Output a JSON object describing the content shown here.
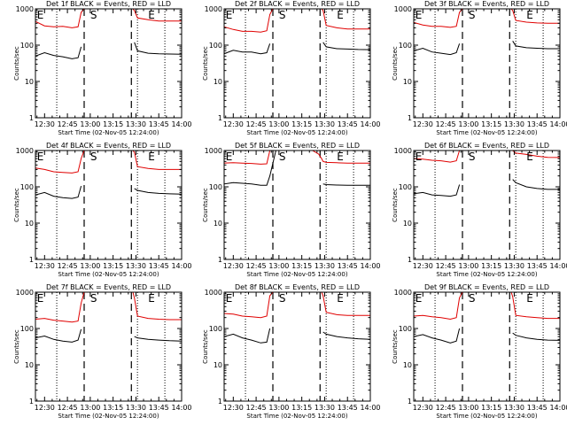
{
  "figure": {
    "panel_titles": [
      "Det 1f BLACK = Events, RED = LLD",
      "Det 2f BLACK = Events, RED = LLD",
      "Det 3f BLACK = Events, RED = LLD",
      "Det 4f BLACK = Events, RED = LLD",
      "Det 5f BLACK = Events, RED = LLD",
      "Det 6f BLACK = Events, RED = LLD",
      "Det 7f BLACK = Events, RED = LLD",
      "Det 8f BLACK = Events, RED = LLD",
      "Det 9f BLACK = Events, RED = LLD"
    ],
    "xlabel": "Start Time (02-Nov-05 12:24:00)",
    "ylabel": "Counts/sec",
    "x_tick_labels": [
      "12:30",
      "12:45",
      "13:00",
      "13:15",
      "13:30",
      "13:45",
      "14:00"
    ],
    "y_tick_labels": [
      "1",
      "10",
      "100",
      "1000"
    ],
    "marker_labels": {
      "start": "S",
      "end": "E"
    },
    "colors": {
      "events": "#000000",
      "lld": "#e00000"
    }
  },
  "chart_data": {
    "type": "line",
    "layout": "3x3 grid",
    "yscale": "log",
    "ylim": [
      1,
      1000
    ],
    "xlim": [
      "12:24",
      "14:00"
    ],
    "x_ticks": [
      "12:30",
      "12:45",
      "13:00",
      "13:15",
      "13:30",
      "13:45",
      "14:00"
    ],
    "dotted_lines": [
      "12:38",
      "13:31",
      "13:49"
    ],
    "dashed_lines": [
      "12:56",
      "13:27"
    ],
    "panels": [
      {
        "title": "Det 1f BLACK = Events, RED = LLD",
        "marks": [
          {
            "label": "E",
            "x": "12:25"
          },
          {
            "label": "S",
            "x": "13:00"
          },
          {
            "label": "E",
            "x": "13:38"
          }
        ],
        "series": [
          {
            "name": "Events",
            "color": "#000000",
            "x": [
              "12:24",
              "12:30",
              "12:36",
              "12:42",
              "12:48",
              "12:52",
              "12:54",
              "13:28",
              "13:29",
              "13:31",
              "13:38",
              "13:45",
              "13:52",
              "14:00"
            ],
            "y": [
              50,
              62,
              52,
              48,
              42,
              45,
              90,
              null,
              120,
              70,
              60,
              58,
              57,
              56
            ]
          },
          {
            "name": "LLD",
            "color": "#e00000",
            "x": [
              "12:24",
              "12:30",
              "12:36",
              "12:42",
              "12:48",
              "12:52",
              "12:54",
              "12:56",
              "13:28",
              "13:29",
              "13:31",
              "13:38",
              "13:45",
              "13:52",
              "14:00"
            ],
            "y": [
              450,
              340,
              320,
              330,
              300,
              320,
              800,
              1000,
              1000,
              900,
              560,
              500,
              460,
              460,
              460
            ]
          }
        ]
      },
      {
        "title": "Det 2f BLACK = Events, RED = LLD",
        "marks": [
          {
            "label": "E",
            "x": "12:25"
          },
          {
            "label": "S",
            "x": "13:00"
          },
          {
            "label": "E",
            "x": "13:38"
          }
        ],
        "series": [
          {
            "name": "Events",
            "color": "#000000",
            "x": [
              "12:24",
              "12:30",
              "12:36",
              "12:42",
              "12:48",
              "12:52",
              "12:54",
              "13:28",
              "13:29",
              "13:31",
              "13:38",
              "13:45",
              "13:52",
              "14:00"
            ],
            "y": [
              58,
              72,
              65,
              65,
              58,
              62,
              110,
              null,
              120,
              90,
              80,
              78,
              76,
              75
            ]
          },
          {
            "name": "LLD",
            "color": "#e00000",
            "x": [
              "12:24",
              "12:30",
              "12:36",
              "12:42",
              "12:48",
              "12:52",
              "12:54",
              "12:56",
              "13:28",
              "13:29",
              "13:31",
              "13:38",
              "13:45",
              "13:52",
              "14:00"
            ],
            "y": [
              320,
              270,
              240,
              240,
              230,
              250,
              700,
              1000,
              1000,
              900,
              350,
              300,
              280,
              280,
              280
            ]
          }
        ]
      },
      {
        "title": "Det 3f BLACK = Events, RED = LLD",
        "marks": [
          {
            "label": "E",
            "x": "12:25"
          },
          {
            "label": "S",
            "x": "13:00"
          },
          {
            "label": "E",
            "x": "13:38"
          }
        ],
        "series": [
          {
            "name": "Events",
            "color": "#000000",
            "x": [
              "12:24",
              "12:30",
              "12:36",
              "12:42",
              "12:48",
              "12:52",
              "12:54",
              "13:28",
              "13:29",
              "13:31",
              "13:38",
              "13:45",
              "13:52",
              "14:00"
            ],
            "y": [
              70,
              82,
              65,
              60,
              55,
              62,
              110,
              null,
              130,
              95,
              85,
              82,
              80,
              80
            ]
          },
          {
            "name": "LLD",
            "color": "#e00000",
            "x": [
              "12:24",
              "12:30",
              "12:36",
              "12:42",
              "12:48",
              "12:52",
              "12:54",
              "12:56",
              "13:28",
              "13:29",
              "13:31",
              "13:38",
              "13:45",
              "13:52",
              "14:00"
            ],
            "y": [
              420,
              360,
              330,
              330,
              310,
              330,
              800,
              1000,
              1000,
              900,
              480,
              430,
              410,
              400,
              400
            ]
          }
        ]
      },
      {
        "title": "Det 4f BLACK = Events, RED = LLD",
        "marks": [
          {
            "label": "E",
            "x": "12:25"
          },
          {
            "label": "S",
            "x": "13:00"
          },
          {
            "label": "E",
            "x": "13:38"
          }
        ],
        "series": [
          {
            "name": "Events",
            "color": "#000000",
            "x": [
              "12:24",
              "12:30",
              "12:36",
              "12:42",
              "12:48",
              "12:52",
              "12:54",
              "13:28",
              "13:29",
              "13:31",
              "13:38",
              "13:45",
              "13:52",
              "14:00"
            ],
            "y": [
              60,
              70,
              55,
              50,
              48,
              52,
              105,
              null,
              90,
              80,
              70,
              66,
              64,
              63
            ]
          },
          {
            "name": "LLD",
            "color": "#e00000",
            "x": [
              "12:24",
              "12:30",
              "12:36",
              "12:42",
              "12:48",
              "12:52",
              "12:54",
              "12:56",
              "13:28",
              "13:29",
              "13:31",
              "13:38",
              "13:45",
              "13:52",
              "14:00"
            ],
            "y": [
              330,
              300,
              260,
              250,
              240,
              260,
              600,
              1000,
              1000,
              900,
              360,
              320,
              300,
              300,
              300
            ]
          }
        ]
      },
      {
        "title": "Det 5f BLACK = Events, RED = LLD",
        "marks": [
          {
            "label": "E",
            "x": "12:25"
          },
          {
            "label": "S",
            "x": "13:00"
          },
          {
            "label": "E",
            "x": "13:38"
          }
        ],
        "series": [
          {
            "name": "Events",
            "color": "#000000",
            "x": [
              "12:24",
              "12:30",
              "12:36",
              "12:42",
              "12:48",
              "12:52",
              "12:54",
              "12:58",
              "13:05",
              "13:15",
              "13:22",
              "13:26",
              "13:28",
              "13:29",
              "13:31",
              "13:38",
              "13:45",
              "13:52",
              "14:00"
            ],
            "y": [
              120,
              130,
              125,
              120,
              110,
              110,
              200,
              1000,
              1000,
              1000,
              1000,
              1000,
              null,
              120,
              115,
              112,
              110,
              110,
              110
            ]
          },
          {
            "name": "LLD",
            "color": "#e00000",
            "x": [
              "12:24",
              "12:30",
              "12:36",
              "12:42",
              "12:48",
              "12:52",
              "12:54",
              "12:58",
              "13:05",
              "13:15",
              "13:22",
              "13:26",
              "13:28",
              "13:29",
              "13:31",
              "13:38",
              "13:45",
              "13:52",
              "14:00"
            ],
            "y": [
              450,
              460,
              450,
              440,
              420,
              430,
              1000,
              1000,
              1000,
              1000,
              1000,
              800,
              600,
              500,
              470,
              460,
              450,
              450,
              450
            ]
          }
        ]
      },
      {
        "title": "Det 6f BLACK = Events, RED = LLD",
        "marks": [
          {
            "label": "E",
            "x": "12:25"
          },
          {
            "label": "S",
            "x": "13:00"
          },
          {
            "label": "E",
            "x": "13:38"
          }
        ],
        "series": [
          {
            "name": "Events",
            "color": "#000000",
            "x": [
              "12:24",
              "12:30",
              "12:36",
              "12:42",
              "12:48",
              "12:52",
              "12:54",
              "13:28",
              "13:29",
              "13:31",
              "13:38",
              "13:45",
              "13:52",
              "14:00"
            ],
            "y": [
              65,
              70,
              60,
              58,
              55,
              60,
              115,
              null,
              160,
              130,
              100,
              90,
              85,
              85
            ]
          },
          {
            "name": "LLD",
            "color": "#e00000",
            "x": [
              "12:24",
              "12:30",
              "12:36",
              "12:42",
              "12:48",
              "12:52",
              "12:54",
              "12:56",
              "13:28",
              "13:29",
              "13:31",
              "13:38",
              "13:45",
              "13:52",
              "14:00"
            ],
            "y": [
              600,
              580,
              540,
              520,
              480,
              520,
              1000,
              1000,
              1000,
              1000,
              850,
              780,
              700,
              650,
              640
            ]
          }
        ]
      },
      {
        "title": "Det 7f BLACK = Events, RED = LLD",
        "marks": [
          {
            "label": "E",
            "x": "12:25"
          },
          {
            "label": "S",
            "x": "13:00"
          },
          {
            "label": "E",
            "x": "13:38"
          }
        ],
        "series": [
          {
            "name": "Events",
            "color": "#000000",
            "x": [
              "12:24",
              "12:30",
              "12:36",
              "12:42",
              "12:48",
              "12:52",
              "12:54",
              "13:28",
              "13:29",
              "13:31",
              "13:38",
              "13:45",
              "13:52",
              "14:00"
            ],
            "y": [
              55,
              62,
              50,
              45,
              42,
              48,
              95,
              null,
              60,
              55,
              50,
              48,
              46,
              45
            ]
          },
          {
            "name": "LLD",
            "color": "#e00000",
            "x": [
              "12:24",
              "12:30",
              "12:36",
              "12:42",
              "12:48",
              "12:52",
              "12:54",
              "12:56",
              "13:28",
              "13:29",
              "13:31",
              "13:38",
              "13:45",
              "13:52",
              "14:00"
            ],
            "y": [
              180,
              190,
              170,
              160,
              150,
              160,
              500,
              1000,
              1000,
              700,
              220,
              190,
              180,
              175,
              175
            ]
          }
        ]
      },
      {
        "title": "Det 8f BLACK = Events, RED = LLD",
        "marks": [
          {
            "label": "E",
            "x": "12:25"
          },
          {
            "label": "S",
            "x": "13:00"
          },
          {
            "label": "E",
            "x": "13:38"
          }
        ],
        "series": [
          {
            "name": "Events",
            "color": "#000000",
            "x": [
              "12:24",
              "12:30",
              "12:36",
              "12:42",
              "12:48",
              "12:52",
              "12:54",
              "13:28",
              "13:29",
              "13:31",
              "13:38",
              "13:45",
              "13:52",
              "14:00"
            ],
            "y": [
              60,
              70,
              55,
              48,
              40,
              42,
              100,
              null,
              80,
              70,
              60,
              55,
              52,
              50
            ]
          },
          {
            "name": "LLD",
            "color": "#e00000",
            "x": [
              "12:24",
              "12:30",
              "12:36",
              "12:42",
              "12:48",
              "12:52",
              "12:54",
              "12:56",
              "13:28",
              "13:29",
              "13:31",
              "13:38",
              "13:45",
              "13:52",
              "14:00"
            ],
            "y": [
              260,
              250,
              220,
              210,
              200,
              220,
              800,
              1000,
              1000,
              800,
              280,
              240,
              230,
              230,
              230
            ]
          }
        ]
      },
      {
        "title": "Det 9f BLACK = Events, RED = LLD",
        "marks": [
          {
            "label": "E",
            "x": "12:25"
          },
          {
            "label": "S",
            "x": "13:00"
          },
          {
            "label": "E",
            "x": "13:38"
          }
        ],
        "series": [
          {
            "name": "Events",
            "color": "#000000",
            "x": [
              "12:24",
              "12:30",
              "12:36",
              "12:42",
              "12:48",
              "12:52",
              "12:54",
              "13:28",
              "13:29",
              "13:31",
              "13:38",
              "13:45",
              "13:52",
              "14:00"
            ],
            "y": [
              60,
              68,
              55,
              48,
              40,
              45,
              100,
              null,
              75,
              65,
              55,
              50,
              48,
              47
            ]
          },
          {
            "name": "LLD",
            "color": "#e00000",
            "x": [
              "12:24",
              "12:30",
              "12:36",
              "12:42",
              "12:48",
              "12:52",
              "12:54",
              "12:56",
              "13:28",
              "13:29",
              "13:31",
              "13:38",
              "13:45",
              "13:52",
              "14:00"
            ],
            "y": [
              220,
              230,
              210,
              200,
              180,
              200,
              700,
              1000,
              1000,
              750,
              230,
              210,
              200,
              190,
              190
            ]
          }
        ]
      }
    ]
  }
}
